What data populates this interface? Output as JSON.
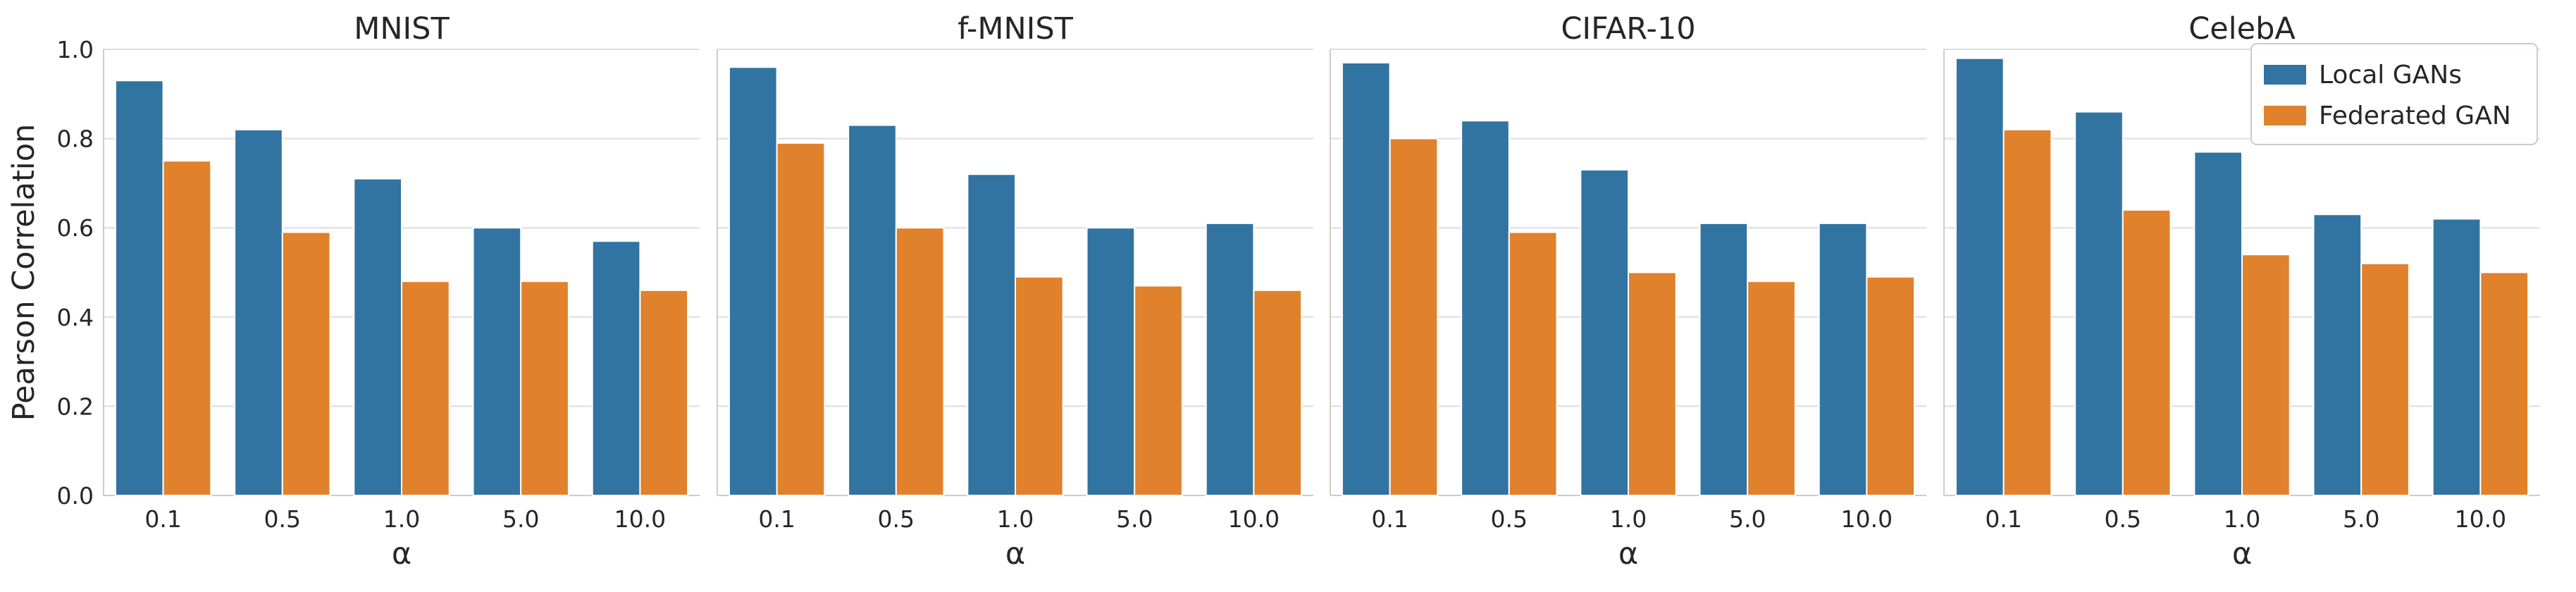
{
  "chart_data": [
    {
      "type": "bar",
      "title": "MNIST",
      "xlabel": "α",
      "ylabel": "Pearson Correlation",
      "categories": [
        "0.1",
        "0.5",
        "1.0",
        "5.0",
        "10.0"
      ],
      "series": [
        {
          "name": "Local GANs",
          "values": [
            0.93,
            0.82,
            0.71,
            0.6,
            0.57
          ]
        },
        {
          "name": "Federated GAN",
          "values": [
            0.75,
            0.59,
            0.48,
            0.48,
            0.46
          ]
        }
      ],
      "ylim": [
        0,
        1.0
      ],
      "yticks": [
        "0.0",
        "0.2",
        "0.4",
        "0.6",
        "0.8",
        "1.0"
      ],
      "grid": "horizontal"
    },
    {
      "type": "bar",
      "title": "f-MNIST",
      "xlabel": "α",
      "ylabel": "",
      "categories": [
        "0.1",
        "0.5",
        "1.0",
        "5.0",
        "10.0"
      ],
      "series": [
        {
          "name": "Local GANs",
          "values": [
            0.96,
            0.83,
            0.72,
            0.6,
            0.61
          ]
        },
        {
          "name": "Federated GAN",
          "values": [
            0.79,
            0.6,
            0.49,
            0.47,
            0.46
          ]
        }
      ],
      "ylim": [
        0,
        1.0
      ],
      "grid": "horizontal"
    },
    {
      "type": "bar",
      "title": "CIFAR-10",
      "xlabel": "α",
      "ylabel": "",
      "categories": [
        "0.1",
        "0.5",
        "1.0",
        "5.0",
        "10.0"
      ],
      "series": [
        {
          "name": "Local GANs",
          "values": [
            0.97,
            0.84,
            0.73,
            0.61,
            0.61
          ]
        },
        {
          "name": "Federated GAN",
          "values": [
            0.8,
            0.59,
            0.5,
            0.48,
            0.49
          ]
        }
      ],
      "ylim": [
        0,
        1.0
      ],
      "grid": "horizontal"
    },
    {
      "type": "bar",
      "title": "CelebA",
      "xlabel": "α",
      "ylabel": "",
      "categories": [
        "0.1",
        "0.5",
        "1.0",
        "5.0",
        "10.0"
      ],
      "series": [
        {
          "name": "Local GANs",
          "values": [
            0.98,
            0.86,
            0.77,
            0.63,
            0.62
          ]
        },
        {
          "name": "Federated GAN",
          "values": [
            0.82,
            0.64,
            0.54,
            0.52,
            0.5
          ]
        }
      ],
      "ylim": [
        0,
        1.0
      ],
      "grid": "horizontal",
      "legend": {
        "placement": "top-right",
        "entries": [
          "Local GANs",
          "Federated GAN"
        ]
      }
    }
  ],
  "colors": {
    "Local GANs": "#3274a1",
    "Federated GAN": "#e1812c",
    "grid": "#dddddd",
    "axis": "#cccccc",
    "text": "#262626"
  }
}
